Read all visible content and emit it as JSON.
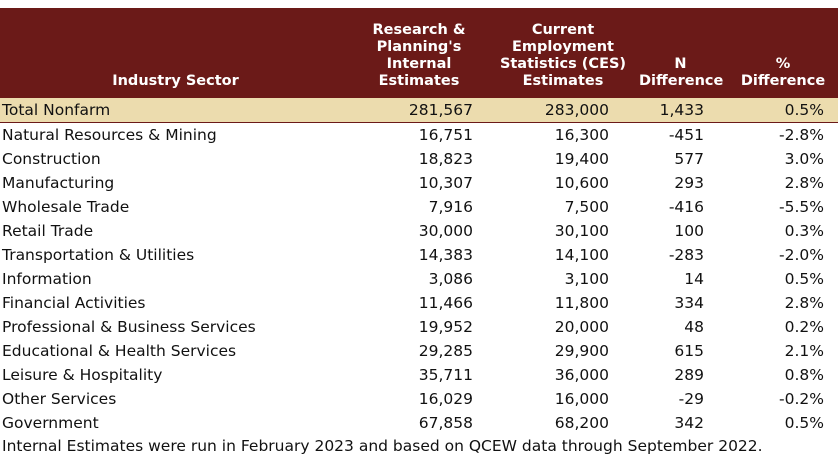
{
  "table": {
    "headers": {
      "sector": "Industry Sector",
      "internal": "Research & Planning's Internal Estimates",
      "ces": "Current Employment Statistics (CES) Estimates",
      "n_diff": "N Difference",
      "pct_diff": "% Difference"
    },
    "rows": [
      {
        "sector": "Total Nonfarm",
        "internal": "281,567",
        "ces": "283,000",
        "n_diff": "1,433",
        "pct_diff": "0.5%"
      },
      {
        "sector": "Natural Resources & Mining",
        "internal": "16,751",
        "ces": "16,300",
        "n_diff": "-451",
        "pct_diff": "-2.8%"
      },
      {
        "sector": "Construction",
        "internal": "18,823",
        "ces": "19,400",
        "n_diff": "577",
        "pct_diff": "3.0%"
      },
      {
        "sector": "Manufacturing",
        "internal": "10,307",
        "ces": "10,600",
        "n_diff": "293",
        "pct_diff": "2.8%"
      },
      {
        "sector": "Wholesale Trade",
        "internal": "7,916",
        "ces": "7,500",
        "n_diff": "-416",
        "pct_diff": "-5.5%"
      },
      {
        "sector": "Retail Trade",
        "internal": "30,000",
        "ces": "30,100",
        "n_diff": "100",
        "pct_diff": "0.3%"
      },
      {
        "sector": "Transportation & Utilities",
        "internal": "14,383",
        "ces": "14,100",
        "n_diff": "-283",
        "pct_diff": "-2.0%"
      },
      {
        "sector": "Information",
        "internal": "3,086",
        "ces": "3,100",
        "n_diff": "14",
        "pct_diff": "0.5%"
      },
      {
        "sector": "Financial Activities",
        "internal": "11,466",
        "ces": "11,800",
        "n_diff": "334",
        "pct_diff": "2.8%"
      },
      {
        "sector": "Professional & Business Services",
        "internal": "19,952",
        "ces": "20,000",
        "n_diff": "48",
        "pct_diff": "0.2%"
      },
      {
        "sector": "Educational & Health Services",
        "internal": "29,285",
        "ces": "29,900",
        "n_diff": "615",
        "pct_diff": "2.1%"
      },
      {
        "sector": "Leisure & Hospitality",
        "internal": "35,711",
        "ces": "36,000",
        "n_diff": "289",
        "pct_diff": "0.8%"
      },
      {
        "sector": "Other Services",
        "internal": "16,029",
        "ces": "16,000",
        "n_diff": "-29",
        "pct_diff": "-0.2%"
      },
      {
        "sector": "Government",
        "internal": "67,858",
        "ces": "68,200",
        "n_diff": "342",
        "pct_diff": "0.5%"
      }
    ]
  },
  "footnote": "Internal Estimates were run in February 2023 and based on QCEW data through September 2022.",
  "colors": {
    "header_background": "#6b1a18",
    "header_text": "#ffffff",
    "total_row_background": "#ecdcae"
  }
}
